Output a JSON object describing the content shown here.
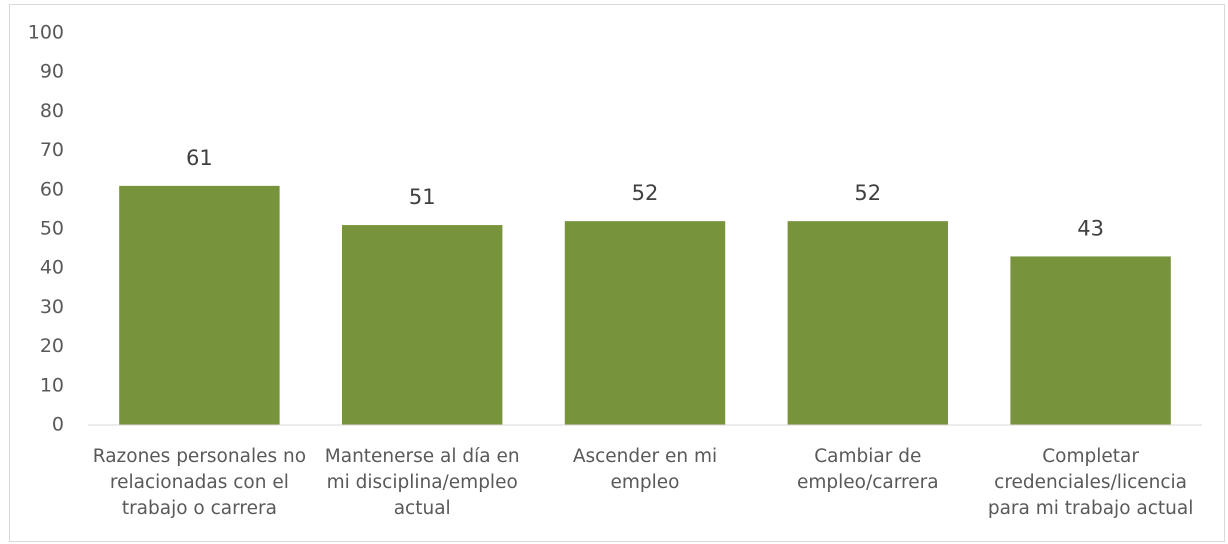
{
  "chart_data": {
    "type": "bar",
    "categories": [
      "Razones personales no relacionadas con el trabajo o carrera",
      "Mantenerse al día en mi disciplina/empleo actual",
      "Ascender en mi empleo",
      "Cambiar de empleo/carrera",
      "Completar credenciales/licencia para mi trabajo actual"
    ],
    "values": [
      61,
      51,
      52,
      52,
      43
    ],
    "color": "#77933c",
    "ylim": [
      0,
      100
    ],
    "yticks": [
      0,
      10,
      20,
      30,
      40,
      50,
      60,
      70,
      80,
      90,
      100
    ],
    "grid": false
  }
}
